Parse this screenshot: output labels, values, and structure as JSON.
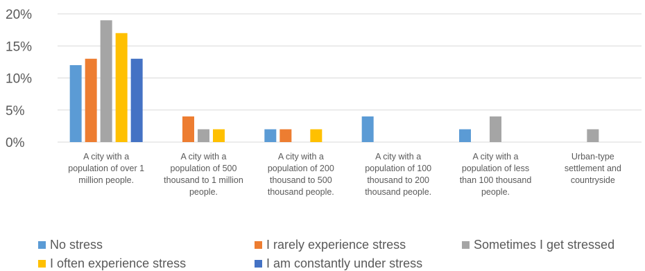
{
  "chart_data": {
    "type": "bar",
    "title": "",
    "xlabel": "",
    "ylabel": "",
    "ylim": [
      0,
      20
    ],
    "yticks": [
      "0%",
      "5%",
      "10%",
      "15%",
      "20%"
    ],
    "grid": true,
    "legend_position": "bottom",
    "categories": [
      [
        "A city with a",
        "population of over 1",
        "million people."
      ],
      [
        "A city with a",
        "population of 500",
        "thousand to 1 million",
        "people."
      ],
      [
        "A city with a",
        "population of 200",
        "thousand to 500",
        "thousand people."
      ],
      [
        "A city with a",
        "population of 100",
        "thousand to 200",
        "thousand people."
      ],
      [
        "A city with a",
        "population of less",
        "than 100 thousand",
        "people."
      ],
      [
        "Urban-type",
        "settlement and",
        "countryside"
      ]
    ],
    "series": [
      {
        "name": "No stress",
        "color": "#5b9bd5",
        "values": [
          12,
          0,
          2,
          4,
          2,
          0
        ]
      },
      {
        "name": "I rarely experience stress",
        "color": "#ed7d31",
        "values": [
          13,
          4,
          2,
          0,
          0,
          0
        ]
      },
      {
        "name": "Sometimes I get stressed",
        "color": "#a5a5a5",
        "values": [
          19,
          2,
          0,
          0,
          4,
          2
        ]
      },
      {
        "name": "I often experience stress",
        "color": "#ffc000",
        "values": [
          17,
          2,
          2,
          0,
          0,
          0
        ]
      },
      {
        "name": "I am constantly under stress",
        "color": "#4472c4",
        "values": [
          13,
          0,
          0,
          0,
          0,
          0
        ]
      }
    ]
  }
}
